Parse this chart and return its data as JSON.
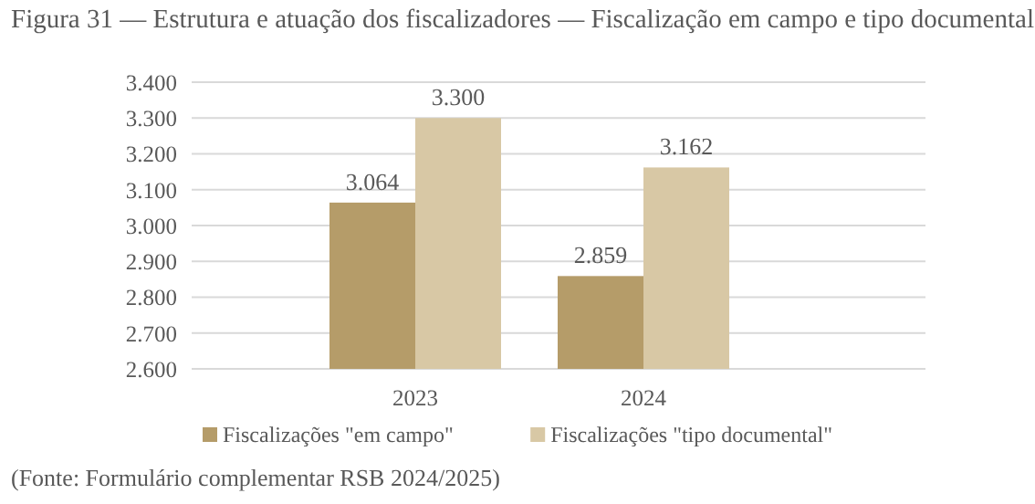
{
  "chart_data": {
    "type": "bar",
    "title": "Figura 31 — Estrutura e atuação dos fiscalizadores — Fiscalização em campo e tipo documental",
    "categories": [
      "2023",
      "2024"
    ],
    "series": [
      {
        "name": "Fiscalizações \"em campo\"",
        "color": "#b59c69",
        "values": [
          3064,
          2859
        ],
        "value_labels": [
          "3.064",
          "2.859"
        ]
      },
      {
        "name": "Fiscalizações \"tipo documental\"",
        "color": "#d8c8a5",
        "values": [
          3300,
          3162
        ],
        "value_labels": [
          "3.300",
          "3.162"
        ]
      }
    ],
    "ylim": [
      2600,
      3400
    ],
    "yticks": [
      {
        "value": 2600,
        "label": "2.600"
      },
      {
        "value": 2700,
        "label": "2.700"
      },
      {
        "value": 2800,
        "label": "2.800"
      },
      {
        "value": 2900,
        "label": "2.900"
      },
      {
        "value": 3000,
        "label": "3.000"
      },
      {
        "value": 3100,
        "label": "3.100"
      },
      {
        "value": 3200,
        "label": "3.200"
      },
      {
        "value": 3300,
        "label": "3.300"
      },
      {
        "value": 3400,
        "label": "3.400"
      }
    ],
    "grid": "y",
    "legend": "bottom",
    "annotations": [
      "(Fonte: Formulário complementar RSB 2024/2025)"
    ]
  }
}
